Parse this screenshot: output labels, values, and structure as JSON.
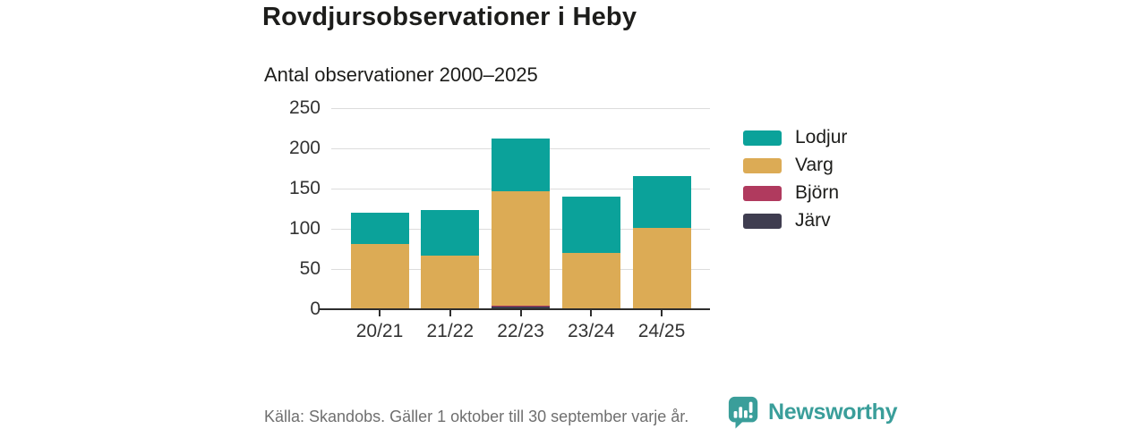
{
  "header": {
    "title": "Rovdjursobservationer i Heby",
    "subtitle": "Antal observationer 2000–2025"
  },
  "footer": {
    "source": "Källa: Skandobs. Gäller 1 oktober till 30 september varje år."
  },
  "logo": {
    "text": "Newsworthy",
    "icon": "newsworthy-bubble-barchart-icon"
  },
  "colors": {
    "background": "#ffffff",
    "title": "#1d1d1b",
    "subtitle": "#1d1d1b",
    "axis-label": "#333333",
    "grid": "#dcdcdc",
    "axis-line": "#2d2d2d",
    "footer": "#6f6f6f",
    "brand": "#3a9e9a"
  },
  "chart_data": {
    "type": "bar",
    "stacked": true,
    "categories": [
      "20/21",
      "21/22",
      "22/23",
      "23/24",
      "24/25"
    ],
    "series": [
      {
        "name": "Lodjur",
        "color": "#0ba29a",
        "values": [
          39,
          56,
          65,
          70,
          65
        ]
      },
      {
        "name": "Varg",
        "color": "#dcab55",
        "values": [
          81,
          67,
          143,
          70,
          101
        ]
      },
      {
        "name": "Björn",
        "color": "#b03a5e",
        "values": [
          0,
          0,
          1,
          0,
          0
        ]
      },
      {
        "name": "Järv",
        "color": "#3f3d50",
        "values": [
          0,
          0,
          3,
          0,
          0
        ]
      }
    ],
    "totals": [
      120,
      123,
      212,
      140,
      166
    ],
    "stack_order_bottom_to_top": [
      "Järv",
      "Björn",
      "Varg",
      "Lodjur"
    ],
    "yticks": [
      0,
      50,
      100,
      150,
      200,
      250
    ],
    "ylim": [
      0,
      250
    ],
    "xlabel": "",
    "ylabel": "",
    "grid": true,
    "legend_position": "right"
  }
}
